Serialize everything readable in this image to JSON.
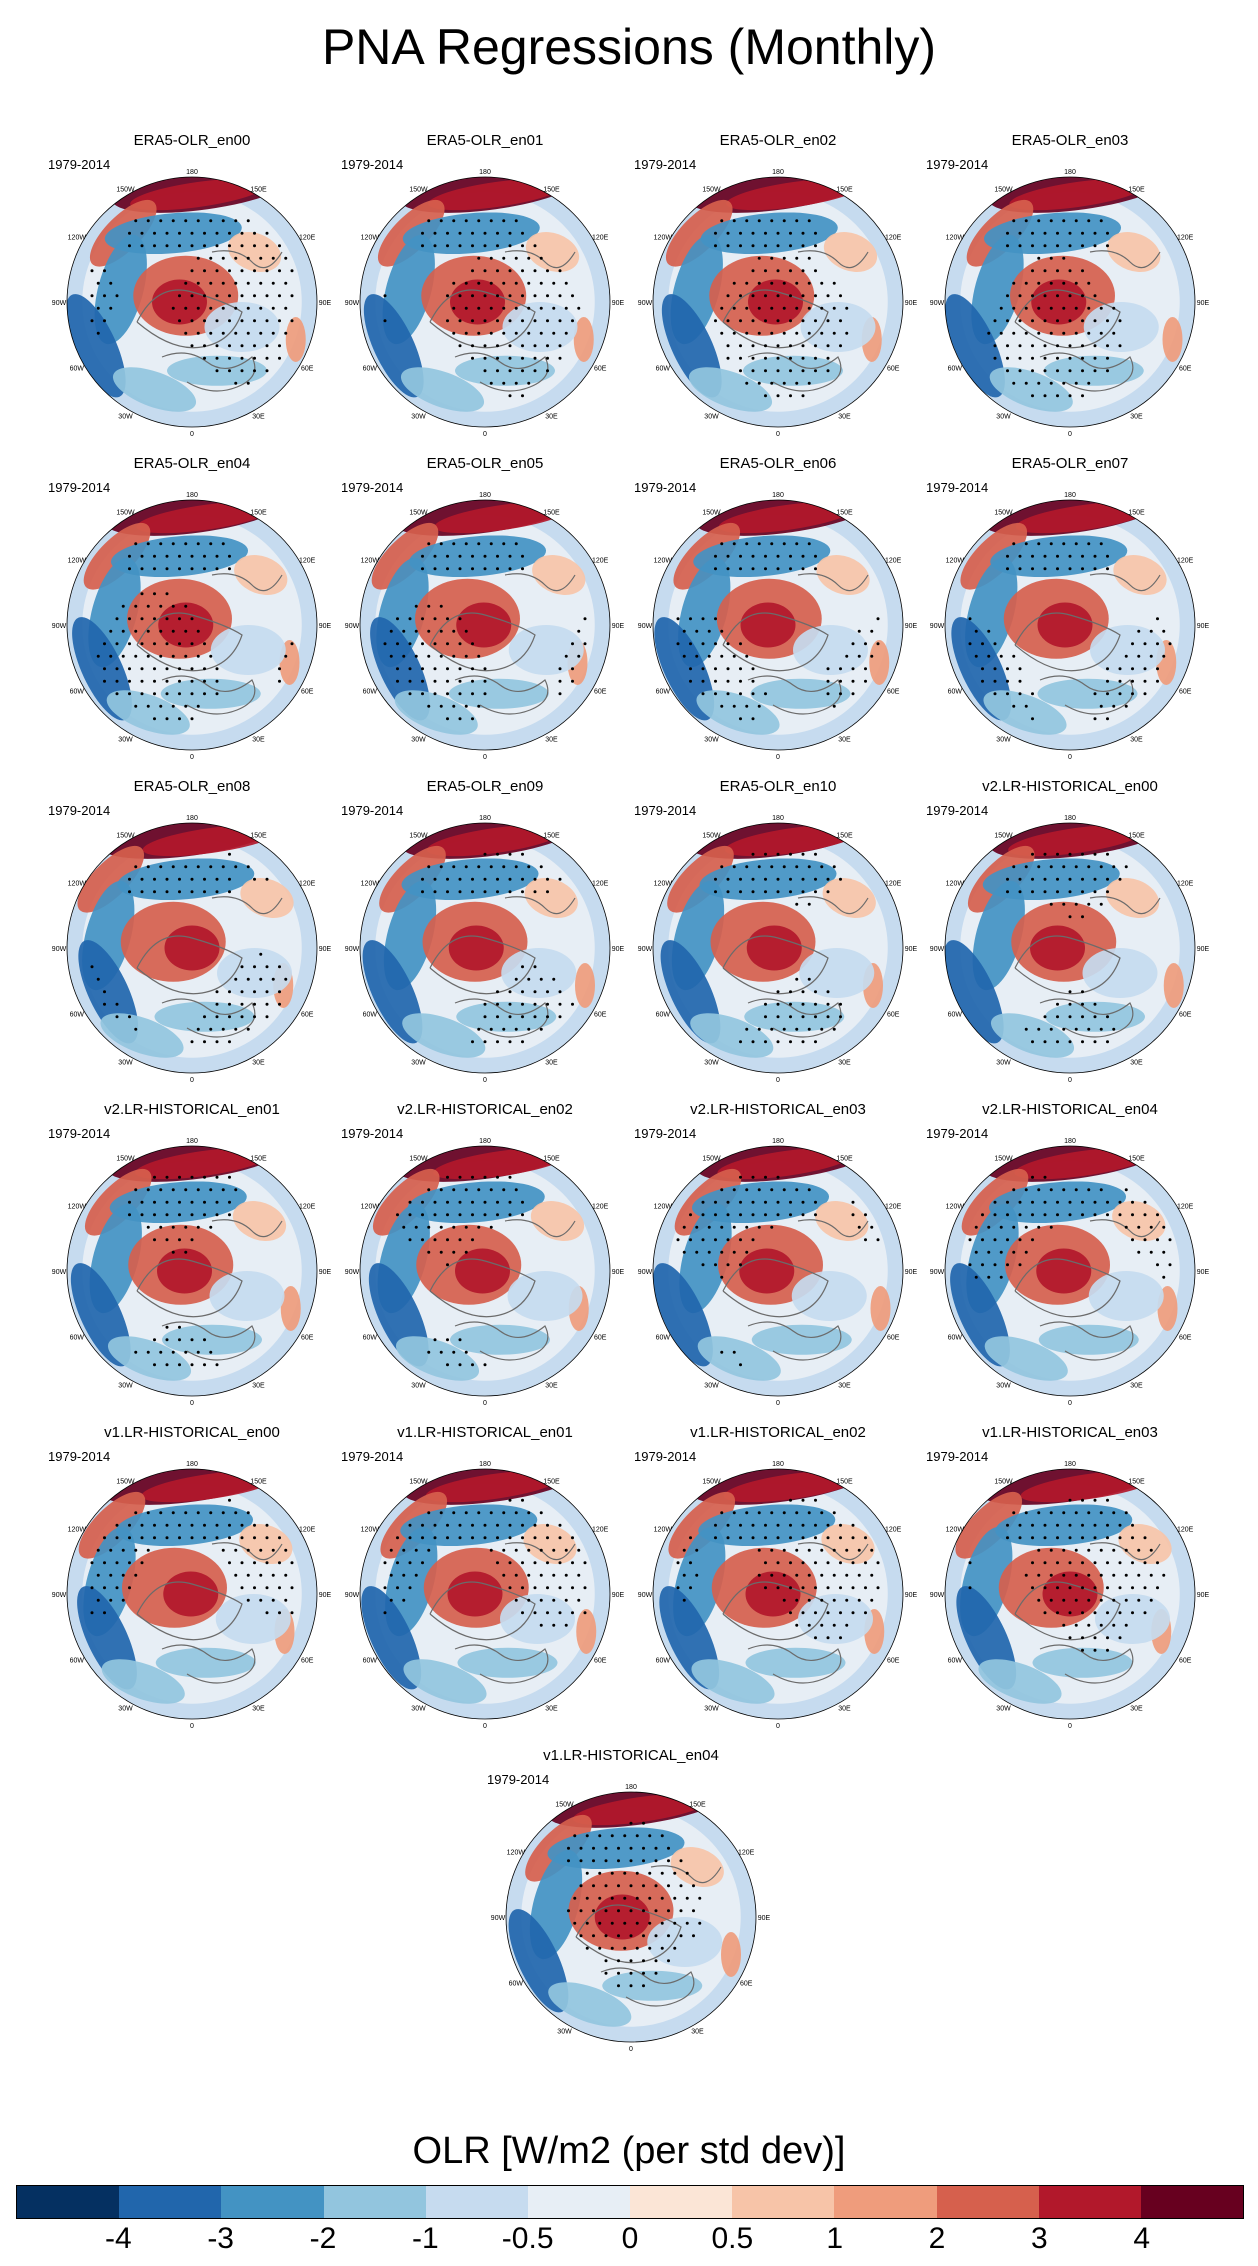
{
  "figure": {
    "title": "PNA Regressions (Monthly)"
  },
  "colorbar": {
    "title": "OLR [W/m2 (per std dev)]",
    "colors": [
      "#053061",
      "#2166ac",
      "#4393c3",
      "#92c5de",
      "#c6dbef",
      "#e7eef5",
      "#fbe5d6",
      "#f7c4a8",
      "#ef9c7c",
      "#d6604d",
      "#b2182b",
      "#67001f"
    ],
    "tick_labels": [
      "-4",
      "-3",
      "-2",
      "-1",
      "-0.5",
      "0",
      "0.5",
      "1",
      "2",
      "3",
      "4"
    ]
  },
  "map_labels": {
    "lon": [
      "180",
      "150E",
      "120E",
      "90E",
      "60E",
      "30E",
      "0",
      "30W",
      "60W",
      "90W",
      "120W",
      "150W"
    ]
  },
  "panels": [
    {
      "title": "ERA5-OLR_en00",
      "period": "1979-2014"
    },
    {
      "title": "ERA5-OLR_en01",
      "period": "1979-2014"
    },
    {
      "title": "ERA5-OLR_en02",
      "period": "1979-2014"
    },
    {
      "title": "ERA5-OLR_en03",
      "period": "1979-2014"
    },
    {
      "title": "ERA5-OLR_en04",
      "period": "1979-2014"
    },
    {
      "title": "ERA5-OLR_en05",
      "period": "1979-2014"
    },
    {
      "title": "ERA5-OLR_en06",
      "period": "1979-2014"
    },
    {
      "title": "ERA5-OLR_en07",
      "period": "1979-2014"
    },
    {
      "title": "ERA5-OLR_en08",
      "period": "1979-2014"
    },
    {
      "title": "ERA5-OLR_en09",
      "period": "1979-2014"
    },
    {
      "title": "ERA5-OLR_en10",
      "period": "1979-2014"
    },
    {
      "title": "v2.LR-HISTORICAL_en00",
      "period": "1979-2014"
    },
    {
      "title": "v2.LR-HISTORICAL_en01",
      "period": "1979-2014"
    },
    {
      "title": "v2.LR-HISTORICAL_en02",
      "period": "1979-2014"
    },
    {
      "title": "v2.LR-HISTORICAL_en03",
      "period": "1979-2014"
    },
    {
      "title": "v2.LR-HISTORICAL_en04",
      "period": "1979-2014"
    },
    {
      "title": "v1.LR-HISTORICAL_en00",
      "period": "1979-2014"
    },
    {
      "title": "v1.LR-HISTORICAL_en01",
      "period": "1979-2014"
    },
    {
      "title": "v1.LR-HISTORICAL_en02",
      "period": "1979-2014"
    },
    {
      "title": "v1.LR-HISTORICAL_en03",
      "period": "1979-2014"
    },
    {
      "title": "v1.LR-HISTORICAL_en04",
      "period": "1979-2014"
    }
  ]
}
